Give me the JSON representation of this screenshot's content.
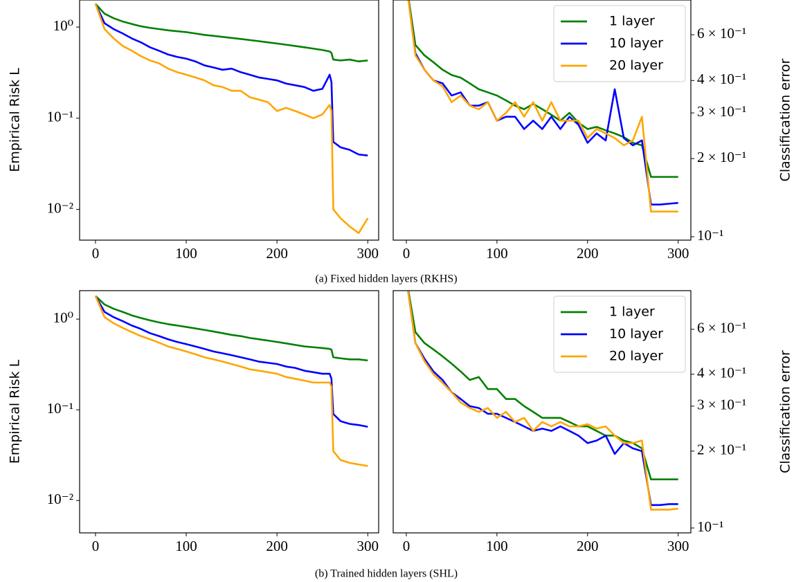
{
  "captions": [
    "(a) Fixed hidden layers (RKHS)",
    "(b) Trained hidden layers (SHL)"
  ],
  "chart_data": [
    {
      "type": "line",
      "ylabel": "Empirical Risk L",
      "yscale": "log",
      "yaxis_position": "left",
      "xlim": [
        -17.5,
        312
      ],
      "xticks": [
        0,
        100,
        200,
        300
      ],
      "ylim": [
        0.0046,
        1.98
      ],
      "yticks": [
        {
          "value": 1,
          "label": "10⁰"
        },
        {
          "value": 0.1,
          "label": "10⁻¹"
        },
        {
          "value": 0.01,
          "label": "10⁻²"
        }
      ],
      "x": [
        0,
        10,
        20,
        30,
        40,
        50,
        60,
        70,
        80,
        90,
        100,
        110,
        120,
        130,
        140,
        150,
        160,
        170,
        180,
        190,
        200,
        210,
        220,
        230,
        240,
        250,
        258,
        260,
        262,
        270,
        280,
        290,
        300
      ],
      "series": [
        {
          "name": "1 layer",
          "color": "#008000",
          "values": [
            1.8,
            1.4,
            1.25,
            1.15,
            1.08,
            1.02,
            0.98,
            0.95,
            0.92,
            0.9,
            0.88,
            0.85,
            0.82,
            0.8,
            0.78,
            0.76,
            0.74,
            0.72,
            0.7,
            0.68,
            0.66,
            0.64,
            0.62,
            0.6,
            0.58,
            0.56,
            0.54,
            0.52,
            0.44,
            0.43,
            0.44,
            0.42,
            0.43
          ]
        },
        {
          "name": "10 layer",
          "color": "#0000ff",
          "values": [
            1.8,
            1.1,
            0.95,
            0.85,
            0.75,
            0.68,
            0.6,
            0.55,
            0.5,
            0.47,
            0.45,
            0.42,
            0.38,
            0.36,
            0.34,
            0.35,
            0.32,
            0.3,
            0.28,
            0.27,
            0.26,
            0.24,
            0.23,
            0.22,
            0.2,
            0.21,
            0.3,
            0.25,
            0.055,
            0.048,
            0.045,
            0.04,
            0.039
          ]
        },
        {
          "name": "20 layer",
          "color": "#ffa500",
          "values": [
            1.8,
            0.95,
            0.75,
            0.62,
            0.55,
            0.48,
            0.43,
            0.4,
            0.35,
            0.32,
            0.3,
            0.28,
            0.26,
            0.23,
            0.22,
            0.2,
            0.2,
            0.17,
            0.16,
            0.15,
            0.12,
            0.13,
            0.12,
            0.11,
            0.1,
            0.11,
            0.14,
            0.12,
            0.01,
            0.008,
            0.0065,
            0.0055,
            0.008
          ]
        }
      ]
    },
    {
      "type": "line",
      "ylabel": "Classification error",
      "yscale": "log",
      "yaxis_position": "right",
      "legend": "upper right",
      "xlim": [
        -14.5,
        314
      ],
      "xticks": [
        0,
        100,
        200,
        300
      ],
      "ylim": [
        0.097,
        0.817
      ],
      "yticks": [
        {
          "value": 0.1,
          "label": "10⁻¹"
        },
        {
          "value": 0.2,
          "label": "2 × 10⁻¹"
        },
        {
          "value": 0.3,
          "label": "3 × 10⁻¹"
        },
        {
          "value": 0.4,
          "label": "4 × 10⁻¹"
        },
        {
          "value": 0.6,
          "label": "6 × 10⁻¹"
        }
      ],
      "x": [
        0,
        10,
        20,
        30,
        40,
        50,
        60,
        70,
        80,
        90,
        100,
        110,
        120,
        130,
        140,
        150,
        160,
        170,
        180,
        190,
        200,
        210,
        220,
        230,
        240,
        250,
        260,
        270,
        280,
        290,
        300
      ],
      "series": [
        {
          "name": "1 layer",
          "color": "#008000",
          "values": [
            0.95,
            0.548,
            0.5,
            0.47,
            0.44,
            0.42,
            0.41,
            0.39,
            0.37,
            0.36,
            0.35,
            0.335,
            0.32,
            0.31,
            0.325,
            0.31,
            0.295,
            0.28,
            0.3,
            0.275,
            0.26,
            0.265,
            0.257,
            0.25,
            0.242,
            0.23,
            0.225,
            0.17,
            0.17,
            0.17,
            0.17
          ]
        },
        {
          "name": "10 layer",
          "color": "#0000ff",
          "values": [
            0.95,
            0.51,
            0.44,
            0.4,
            0.39,
            0.35,
            0.36,
            0.32,
            0.32,
            0.33,
            0.28,
            0.29,
            0.29,
            0.26,
            0.28,
            0.26,
            0.29,
            0.26,
            0.29,
            0.27,
            0.23,
            0.25,
            0.235,
            0.37,
            0.24,
            0.225,
            0.235,
            0.133,
            0.133,
            0.134,
            0.135
          ]
        },
        {
          "name": "20 layer",
          "color": "#ffa500",
          "values": [
            0.95,
            0.5,
            0.44,
            0.4,
            0.38,
            0.33,
            0.35,
            0.32,
            0.31,
            0.33,
            0.28,
            0.3,
            0.33,
            0.29,
            0.33,
            0.28,
            0.33,
            0.28,
            0.28,
            0.28,
            0.24,
            0.26,
            0.25,
            0.24,
            0.225,
            0.235,
            0.29,
            0.125,
            0.125,
            0.125,
            0.125
          ]
        }
      ]
    },
    {
      "type": "line",
      "ylabel": "Empirical Risk L",
      "yscale": "log",
      "yaxis_position": "left",
      "xlim": [
        -17.5,
        312
      ],
      "xticks": [
        0,
        100,
        200,
        300
      ],
      "ylim": [
        0.0044,
        2.06
      ],
      "yticks": [
        {
          "value": 1,
          "label": "10⁰"
        },
        {
          "value": 0.1,
          "label": "10⁻¹"
        },
        {
          "value": 0.01,
          "label": "10⁻²"
        }
      ],
      "x": [
        0,
        10,
        20,
        30,
        40,
        50,
        60,
        70,
        80,
        90,
        100,
        110,
        120,
        130,
        140,
        150,
        160,
        170,
        180,
        190,
        200,
        210,
        220,
        230,
        240,
        250,
        258,
        260,
        262,
        270,
        280,
        290,
        300
      ],
      "series": [
        {
          "name": "1 layer",
          "color": "#008000",
          "values": [
            1.8,
            1.45,
            1.3,
            1.2,
            1.1,
            1.03,
            0.97,
            0.92,
            0.88,
            0.85,
            0.82,
            0.79,
            0.76,
            0.73,
            0.7,
            0.67,
            0.65,
            0.62,
            0.6,
            0.58,
            0.56,
            0.54,
            0.52,
            0.5,
            0.49,
            0.48,
            0.47,
            0.46,
            0.38,
            0.37,
            0.36,
            0.36,
            0.35
          ]
        },
        {
          "name": "10 layer",
          "color": "#0000ff",
          "values": [
            1.8,
            1.2,
            1.05,
            0.95,
            0.85,
            0.78,
            0.7,
            0.65,
            0.6,
            0.56,
            0.53,
            0.5,
            0.47,
            0.44,
            0.42,
            0.4,
            0.38,
            0.36,
            0.34,
            0.33,
            0.32,
            0.3,
            0.29,
            0.27,
            0.26,
            0.25,
            0.25,
            0.22,
            0.09,
            0.075,
            0.07,
            0.068,
            0.065
          ]
        },
        {
          "name": "20 layer",
          "color": "#ffa500",
          "values": [
            1.8,
            1.05,
            0.9,
            0.8,
            0.72,
            0.65,
            0.6,
            0.55,
            0.5,
            0.47,
            0.44,
            0.41,
            0.38,
            0.36,
            0.34,
            0.32,
            0.3,
            0.28,
            0.27,
            0.26,
            0.25,
            0.23,
            0.22,
            0.21,
            0.2,
            0.2,
            0.2,
            0.18,
            0.035,
            0.028,
            0.026,
            0.025,
            0.024
          ]
        }
      ]
    },
    {
      "type": "line",
      "ylabel": "Classification error",
      "yscale": "log",
      "yaxis_position": "right",
      "legend": "upper right",
      "xlim": [
        -14.5,
        314
      ],
      "xticks": [
        0,
        100,
        200,
        300
      ],
      "ylim": [
        0.0957,
        0.85
      ],
      "yticks": [
        {
          "value": 0.1,
          "label": "10⁻¹"
        },
        {
          "value": 0.2,
          "label": "2 × 10⁻¹"
        },
        {
          "value": 0.3,
          "label": "3 × 10⁻¹"
        },
        {
          "value": 0.4,
          "label": "4 × 10⁻¹"
        },
        {
          "value": 0.6,
          "label": "6 × 10⁻¹"
        }
      ],
      "x": [
        0,
        10,
        20,
        30,
        40,
        50,
        60,
        70,
        80,
        90,
        100,
        110,
        120,
        130,
        140,
        150,
        160,
        170,
        180,
        190,
        200,
        210,
        220,
        230,
        240,
        250,
        260,
        270,
        280,
        290,
        300
      ],
      "series": [
        {
          "name": "1 layer",
          "color": "#008000",
          "values": [
            0.95,
            0.585,
            0.53,
            0.5,
            0.47,
            0.44,
            0.41,
            0.38,
            0.39,
            0.35,
            0.35,
            0.32,
            0.32,
            0.3,
            0.285,
            0.27,
            0.27,
            0.27,
            0.26,
            0.25,
            0.25,
            0.24,
            0.23,
            0.23,
            0.22,
            0.215,
            0.205,
            0.155,
            0.155,
            0.155,
            0.155
          ]
        },
        {
          "name": "10 layer",
          "color": "#0000ff",
          "values": [
            0.95,
            0.53,
            0.46,
            0.41,
            0.38,
            0.34,
            0.32,
            0.3,
            0.295,
            0.28,
            0.28,
            0.27,
            0.26,
            0.25,
            0.24,
            0.245,
            0.24,
            0.25,
            0.24,
            0.23,
            0.215,
            0.22,
            0.23,
            0.195,
            0.215,
            0.205,
            0.2,
            0.123,
            0.123,
            0.124,
            0.124
          ]
        },
        {
          "name": "20 layer",
          "color": "#ffa500",
          "values": [
            0.95,
            0.53,
            0.45,
            0.4,
            0.37,
            0.34,
            0.31,
            0.295,
            0.285,
            0.295,
            0.27,
            0.285,
            0.26,
            0.27,
            0.24,
            0.26,
            0.25,
            0.26,
            0.25,
            0.25,
            0.255,
            0.245,
            0.25,
            0.23,
            0.215,
            0.215,
            0.22,
            0.118,
            0.118,
            0.118,
            0.119
          ]
        }
      ]
    }
  ]
}
